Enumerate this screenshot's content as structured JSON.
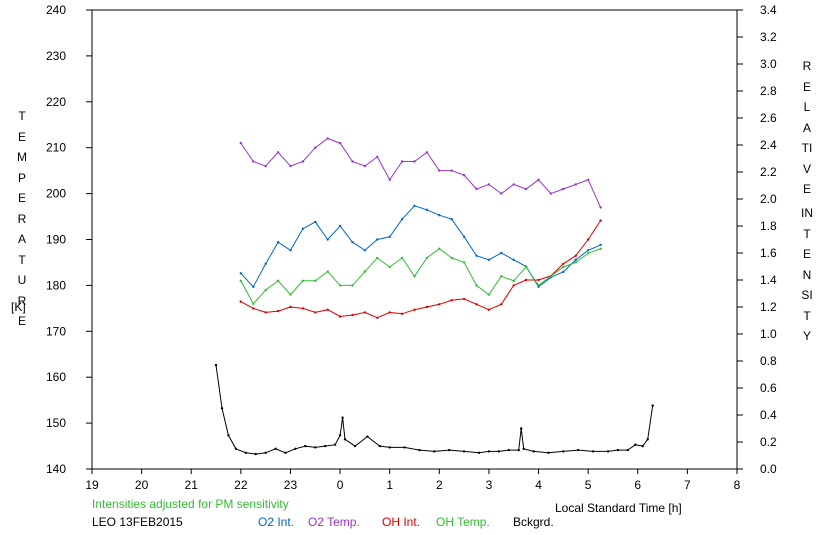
{
  "chart_data": {
    "type": "line",
    "left_axis_label_vertical": "TEMPERATURE",
    "left_axis_unit": "[K]",
    "right_axis_label_vertical_1": "RELATIVE",
    "right_axis_label_vertical_2": "INTENSITY",
    "xlabel": "Local Standard Time [h]",
    "left_ylim": [
      140,
      240
    ],
    "right_ylim": [
      0.0,
      3.4
    ],
    "x_range": [
      19,
      32
    ],
    "x_tick_labels": [
      "19",
      "20",
      "21",
      "22",
      "23",
      "0",
      "1",
      "2",
      "3",
      "4",
      "5",
      "6",
      "7",
      "8"
    ],
    "left_tick_labels": [
      "140",
      "150",
      "160",
      "170",
      "180",
      "190",
      "200",
      "210",
      "220",
      "230",
      "240"
    ],
    "right_tick_labels": [
      "0.0",
      "0.2",
      "0.4",
      "0.6",
      "0.8",
      "1.0",
      "1.2",
      "1.4",
      "1.6",
      "1.8",
      "2.0",
      "2.2",
      "2.4",
      "2.6",
      "2.8",
      "3.0",
      "3.2",
      "3.4"
    ],
    "note": "Intensities adjusted for PM sensitivity",
    "station_label": "LEO 13FEB2015",
    "series": [
      {
        "name": "O2 Int.",
        "color": "#0066cc",
        "axis": "right",
        "x": [
          22.0,
          22.25,
          22.5,
          22.75,
          23.0,
          23.25,
          23.5,
          23.75,
          24.0,
          24.25,
          24.5,
          24.75,
          25.0,
          25.25,
          25.5,
          25.75,
          26.0,
          26.25,
          26.5,
          26.75,
          27.0,
          27.25,
          27.5,
          27.75,
          28.0,
          28.25,
          28.5,
          28.75,
          29.0,
          29.25
        ],
        "y": [
          1.45,
          1.35,
          1.52,
          1.68,
          1.62,
          1.78,
          1.83,
          1.7,
          1.8,
          1.68,
          1.62,
          1.7,
          1.72,
          1.85,
          1.95,
          1.92,
          1.88,
          1.85,
          1.72,
          1.58,
          1.55,
          1.6,
          1.55,
          1.5,
          1.35,
          1.42,
          1.46,
          1.55,
          1.62,
          1.66
        ]
      },
      {
        "name": "O2 Temp.",
        "color": "#9933cc",
        "axis": "left",
        "x": [
          22.0,
          22.25,
          22.5,
          22.75,
          23.0,
          23.25,
          23.5,
          23.75,
          24.0,
          24.25,
          24.5,
          24.75,
          25.0,
          25.25,
          25.5,
          25.75,
          26.0,
          26.25,
          26.5,
          26.75,
          27.0,
          27.25,
          27.5,
          27.75,
          28.0,
          28.25,
          28.5,
          28.75,
          29.0,
          29.25
        ],
        "y": [
          211,
          207,
          206,
          209,
          206,
          207,
          210,
          212,
          211,
          207,
          206,
          208,
          203,
          207,
          207,
          209,
          205,
          205,
          204,
          201,
          202,
          200,
          202,
          201,
          203,
          200,
          201,
          202,
          203,
          197
        ]
      },
      {
        "name": "OH Int.",
        "color": "#dd0000",
        "axis": "right",
        "x": [
          22.0,
          22.25,
          22.5,
          22.75,
          23.0,
          23.25,
          23.5,
          23.75,
          24.0,
          24.25,
          24.5,
          24.75,
          25.0,
          25.25,
          25.5,
          25.75,
          26.0,
          26.25,
          26.5,
          26.75,
          27.0,
          27.25,
          27.5,
          27.75,
          28.0,
          28.25,
          28.5,
          28.75,
          29.0,
          29.25
        ],
        "y": [
          1.24,
          1.19,
          1.16,
          1.17,
          1.2,
          1.19,
          1.16,
          1.18,
          1.13,
          1.14,
          1.16,
          1.12,
          1.16,
          1.15,
          1.18,
          1.2,
          1.22,
          1.25,
          1.26,
          1.22,
          1.18,
          1.22,
          1.36,
          1.4,
          1.4,
          1.43,
          1.52,
          1.58,
          1.7,
          1.84
        ]
      },
      {
        "name": "OH Temp.",
        "color": "#33bb33",
        "axis": "left",
        "x": [
          22.0,
          22.25,
          22.5,
          22.75,
          23.0,
          23.25,
          23.5,
          23.75,
          24.0,
          24.25,
          24.5,
          24.75,
          25.0,
          25.25,
          25.5,
          25.75,
          26.0,
          26.25,
          26.5,
          26.75,
          27.0,
          27.25,
          27.5,
          27.75,
          28.0,
          28.25,
          28.5,
          28.75,
          29.0,
          29.25
        ],
        "y": [
          181,
          176,
          179,
          181,
          178,
          181,
          181,
          183,
          180,
          180,
          183,
          186,
          184,
          186,
          182,
          186,
          188,
          186,
          185,
          180,
          178,
          182,
          181,
          184,
          180,
          182,
          184,
          185,
          187,
          188
        ]
      },
      {
        "name": "Bckgrd.",
        "color": "#000000",
        "axis": "right",
        "x": [
          21.5,
          21.62,
          21.75,
          21.9,
          22.1,
          22.3,
          22.5,
          22.7,
          22.9,
          23.1,
          23.3,
          23.5,
          23.7,
          23.9,
          24.0,
          24.05,
          24.1,
          24.3,
          24.55,
          24.8,
          25.0,
          25.3,
          25.6,
          25.9,
          26.2,
          26.5,
          26.8,
          27.0,
          27.2,
          27.4,
          27.6,
          27.65,
          27.7,
          27.9,
          28.2,
          28.5,
          28.8,
          29.1,
          29.4,
          29.6,
          29.8,
          29.95,
          30.1,
          30.2,
          30.3
        ],
        "y": [
          0.77,
          0.45,
          0.25,
          0.15,
          0.12,
          0.11,
          0.12,
          0.15,
          0.12,
          0.15,
          0.17,
          0.16,
          0.17,
          0.18,
          0.25,
          0.38,
          0.22,
          0.17,
          0.24,
          0.17,
          0.16,
          0.16,
          0.14,
          0.13,
          0.14,
          0.13,
          0.12,
          0.13,
          0.13,
          0.14,
          0.14,
          0.3,
          0.15,
          0.13,
          0.12,
          0.13,
          0.14,
          0.13,
          0.13,
          0.14,
          0.14,
          0.18,
          0.17,
          0.22,
          0.47
        ]
      }
    ]
  }
}
